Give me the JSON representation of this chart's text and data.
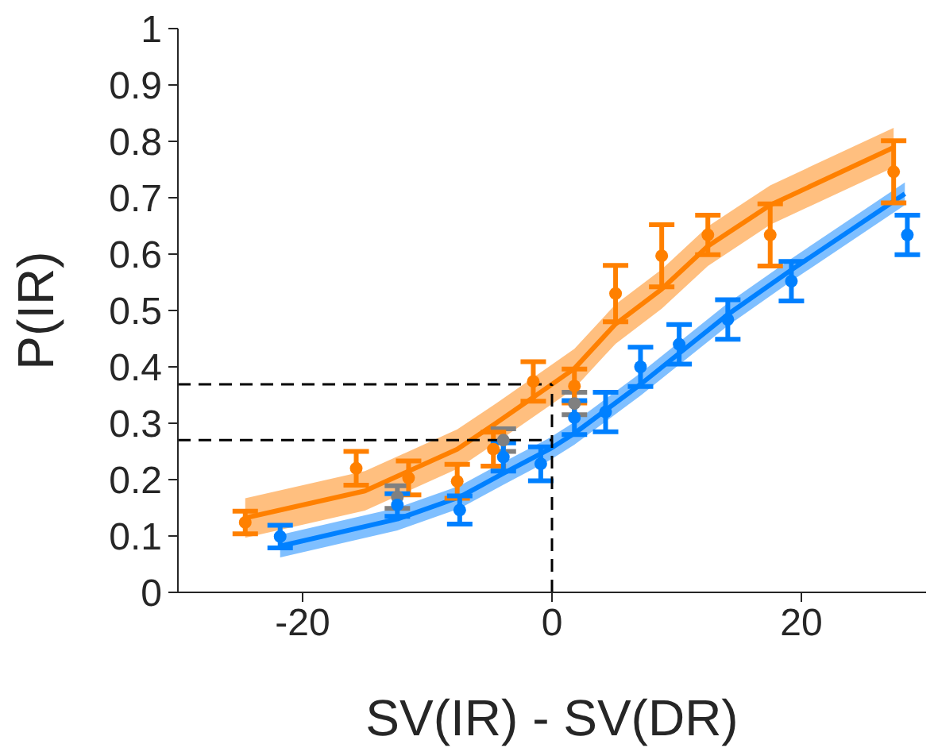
{
  "chart_data": {
    "type": "line",
    "xlabel": "SV(IR) - SV(DR)",
    "ylabel": "P(IR)",
    "xlim": [
      -30,
      30
    ],
    "xticks": [
      -20,
      0,
      20
    ],
    "ylim": [
      0,
      1
    ],
    "yticks": [
      0,
      0.1,
      0.2,
      0.3,
      0.4,
      0.5,
      0.6,
      0.7,
      0.8,
      0.9,
      1
    ],
    "grid": false,
    "legend": false,
    "line_style": "solid",
    "ref_lines": [
      {
        "axis": "y",
        "value": 0.369,
        "color": "#000000",
        "line_style": "dashed"
      },
      {
        "axis": "y",
        "value": 0.27,
        "color": "#000000",
        "line_style": "dashed"
      },
      {
        "axis": "x",
        "value": 0,
        "color": "#000000",
        "line_style": "dashed"
      }
    ],
    "series": [
      {
        "color": "#ff8000",
        "marker": "none",
        "x": [
          -24.6,
          -15,
          -7.6,
          -4.5,
          -0.2,
          1.8,
          5.1,
          8.8,
          12.5,
          17.5,
          27.4
        ],
        "values": [
          0.132,
          0.18,
          0.254,
          0.3,
          0.366,
          0.397,
          0.476,
          0.538,
          0.614,
          0.687,
          0.789
        ],
        "lower": [
          0.097,
          0.145,
          0.219,
          0.265,
          0.331,
          0.362,
          0.441,
          0.503,
          0.579,
          0.652,
          0.754
        ],
        "upper": [
          0.167,
          0.215,
          0.289,
          0.335,
          0.401,
          0.432,
          0.511,
          0.573,
          0.649,
          0.722,
          0.824
        ]
      },
      {
        "color": "#0080ff",
        "marker": "none",
        "x": [
          -21.8,
          -12.4,
          -7.4,
          -3.9,
          -0.2,
          1.8,
          7.1,
          14.1,
          19.2,
          28.3
        ],
        "values": [
          0.082,
          0.13,
          0.169,
          0.211,
          0.254,
          0.282,
          0.369,
          0.493,
          0.572,
          0.707
        ],
        "lower": [
          0.062,
          0.11,
          0.149,
          0.191,
          0.234,
          0.262,
          0.349,
          0.473,
          0.552,
          0.687
        ],
        "upper": [
          0.102,
          0.15,
          0.189,
          0.231,
          0.274,
          0.302,
          0.389,
          0.513,
          0.592,
          0.727
        ]
      },
      {
        "type": "scatter",
        "color": "#808080",
        "marker": "circle",
        "x": [
          -12.4,
          -3.9,
          1.8
        ],
        "values": [
          0.169,
          0.27,
          0.335
        ],
        "errors": [
          0.02,
          0.02,
          0.02
        ]
      },
      {
        "type": "scatter",
        "color": "#ff8000",
        "marker": "circle",
        "x": [
          -24.6,
          -15.7,
          -11.5,
          -7.6,
          -4.7,
          -1.5,
          1.8,
          5.1,
          8.8,
          12.5,
          17.5,
          27.4
        ],
        "values": [
          0.124,
          0.22,
          0.203,
          0.197,
          0.254,
          0.374,
          0.366,
          0.53,
          0.597,
          0.634,
          0.634,
          0.746
        ],
        "errors": [
          0.02,
          0.03,
          0.03,
          0.03,
          0.03,
          0.035,
          0.03,
          0.05,
          0.055,
          0.035,
          0.055,
          0.055
        ]
      },
      {
        "type": "scatter",
        "color": "#0080ff",
        "marker": "circle",
        "x": [
          -21.8,
          -12.4,
          -7.4,
          -3.9,
          -0.9,
          1.8,
          4.3,
          7.1,
          10.2,
          14.1,
          19.2,
          28.5
        ],
        "values": [
          0.099,
          0.155,
          0.146,
          0.24,
          0.228,
          0.31,
          0.32,
          0.4,
          0.44,
          0.484,
          0.552,
          0.634
        ],
        "errors": [
          0.02,
          0.02,
          0.025,
          0.025,
          0.03,
          0.03,
          0.035,
          0.035,
          0.035,
          0.035,
          0.035,
          0.035
        ]
      }
    ]
  }
}
